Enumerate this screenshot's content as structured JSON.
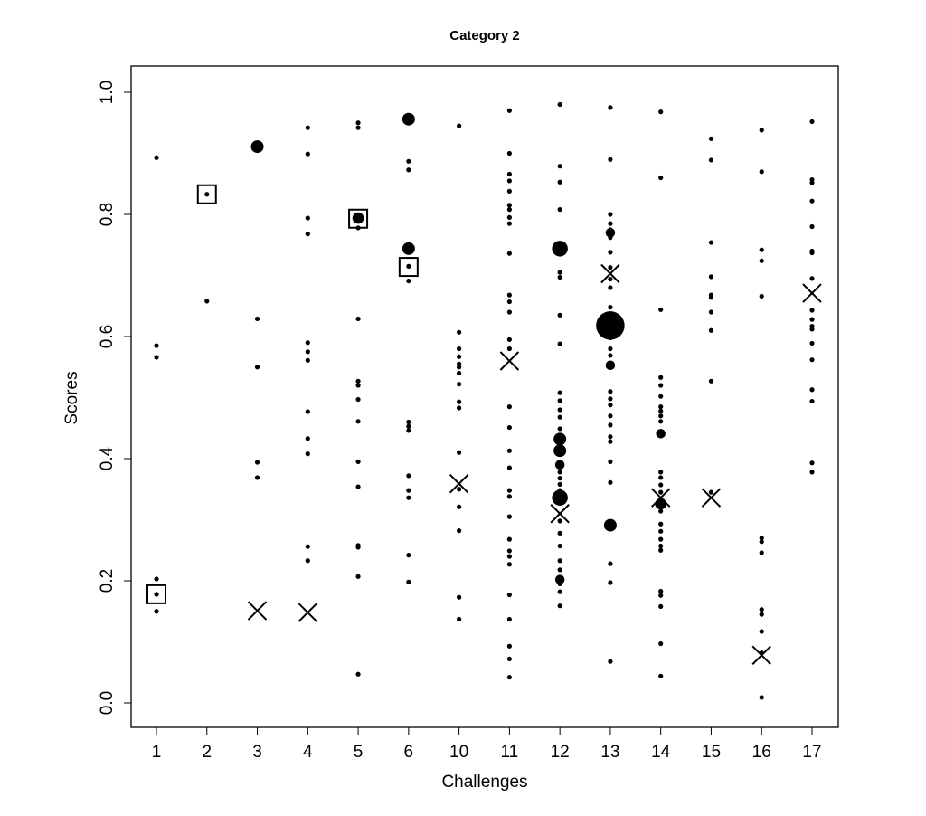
{
  "chart_data": {
    "type": "scatter",
    "title": "Category 2",
    "xlabel": "Challenges",
    "ylabel": "Scores",
    "categories": [
      "1",
      "2",
      "3",
      "4",
      "5",
      "6",
      "10",
      "11",
      "12",
      "13",
      "14",
      "15",
      "16",
      "17"
    ],
    "ylim": [
      -0.04,
      1.043
    ],
    "yticks": [
      {
        "value": 0,
        "label": "0.0"
      },
      0.2,
      0.4,
      0.6,
      0.8,
      {
        "value": 1,
        "label": "1.0"
      }
    ],
    "series": [
      {
        "marker": "dot",
        "color": "#000000",
        "values": [
          [
            0.893,
            0.585,
            0.566,
            0.203,
            0.178,
            0.15
          ],
          [
            0.833,
            0.658
          ],
          [
            0.629,
            0.55,
            0.394,
            0.369
          ],
          [
            0.942,
            0.899,
            0.794,
            0.768,
            0.59,
            0.575,
            0.561,
            0.477,
            0.433,
            0.408,
            0.256,
            0.233
          ],
          [
            0.95,
            0.942,
            0.795,
            0.778,
            0.629,
            0.527,
            0.52,
            0.497,
            0.461,
            0.395,
            0.354,
            0.258,
            0.255,
            0.207,
            0.047
          ],
          [
            0.887,
            0.873,
            0.715,
            0.691,
            0.46,
            0.453,
            0.446,
            0.372,
            0.348,
            0.336,
            0.242,
            0.198
          ],
          [
            0.945,
            0.607,
            0.58,
            0.567,
            0.555,
            0.55,
            0.54,
            0.522,
            0.493,
            0.483,
            0.41,
            0.35,
            0.321,
            0.282,
            0.173,
            0.137
          ],
          [
            0.97,
            0.9,
            0.866,
            0.855,
            0.838,
            0.815,
            0.808,
            0.795,
            0.785,
            0.736,
            0.668,
            0.657,
            0.64,
            0.595,
            0.58,
            0.485,
            0.451,
            0.413,
            0.385,
            0.348,
            0.338,
            0.305,
            0.268,
            0.249,
            0.24,
            0.227,
            0.177,
            0.137,
            0.093,
            0.072,
            0.042
          ],
          [
            0.98,
            0.879,
            0.853,
            0.808,
            0.705,
            0.697,
            0.635,
            0.588,
            0.508,
            0.495,
            0.48,
            0.468,
            0.449,
            0.437,
            0.408,
            0.378,
            0.368,
            0.358,
            0.348,
            0.298,
            0.278,
            0.257,
            0.233,
            0.218,
            0.195,
            0.182,
            0.159
          ],
          [
            0.975,
            0.89,
            0.8,
            0.785,
            0.775,
            0.762,
            0.738,
            0.713,
            0.694,
            0.68,
            0.648,
            0.637,
            0.598,
            0.58,
            0.569,
            0.51,
            0.498,
            0.488,
            0.47,
            0.455,
            0.436,
            0.428,
            0.395,
            0.361,
            0.228,
            0.197,
            0.068
          ],
          [
            0.968,
            0.86,
            0.644,
            0.533,
            0.52,
            0.502,
            0.485,
            0.478,
            0.47,
            0.461,
            0.378,
            0.369,
            0.357,
            0.345,
            0.314,
            0.293,
            0.281,
            0.268,
            0.257,
            0.25,
            0.183,
            0.176,
            0.158,
            0.097,
            0.044
          ],
          [
            0.924,
            0.889,
            0.754,
            0.698,
            0.668,
            0.664,
            0.64,
            0.61,
            0.527,
            0.345
          ],
          [
            0.938,
            0.87,
            0.742,
            0.724,
            0.666,
            0.27,
            0.264,
            0.246,
            0.153,
            0.145,
            0.117,
            0.082,
            0.009
          ],
          [
            0.952,
            0.857,
            0.852,
            0.822,
            0.78,
            0.74,
            0.737,
            0.695,
            0.643,
            0.628,
            0.617,
            0.612,
            0.589,
            0.562,
            0.513,
            0.494,
            0.393,
            0.378
          ]
        ]
      },
      {
        "marker": "circle",
        "color": "#000000",
        "values": [
          [],
          [],
          [
            0.911
          ],
          [],
          [
            0.794
          ],
          [
            0.956,
            0.744
          ],
          [],
          [],
          [
            0.744,
            0.432,
            0.413,
            0.39,
            0.336,
            0.202
          ],
          [
            0.77,
            0.618,
            0.553,
            0.291
          ],
          [
            0.441,
            0.326
          ],
          [],
          [],
          []
        ],
        "sizes": [
          [],
          [],
          [
            2
          ],
          [],
          [
            1.8
          ],
          [
            2,
            2
          ],
          [],
          [],
          [
            2.5,
            2,
            2,
            1.5,
            2.5,
            1.5
          ],
          [
            1.5,
            4.5,
            1.5,
            2
          ],
          [
            1.5,
            1.8
          ],
          [],
          [],
          []
        ]
      },
      {
        "marker": "square",
        "color": "#000000",
        "values": [
          [
            0.178
          ],
          [
            0.833
          ],
          [],
          [],
          [
            0.793
          ],
          [
            0.714
          ],
          [],
          [],
          [],
          [],
          [],
          [],
          [],
          []
        ]
      },
      {
        "marker": "cross",
        "color": "#000000",
        "values": [
          [],
          [],
          [
            0.151
          ],
          [
            0.148
          ],
          [],
          [],
          [
            0.359
          ],
          [
            0.56
          ],
          [
            0.31
          ],
          [
            0.703
          ],
          [
            0.336
          ],
          [
            0.336
          ],
          [
            0.078
          ],
          [
            0.671
          ]
        ]
      }
    ]
  }
}
